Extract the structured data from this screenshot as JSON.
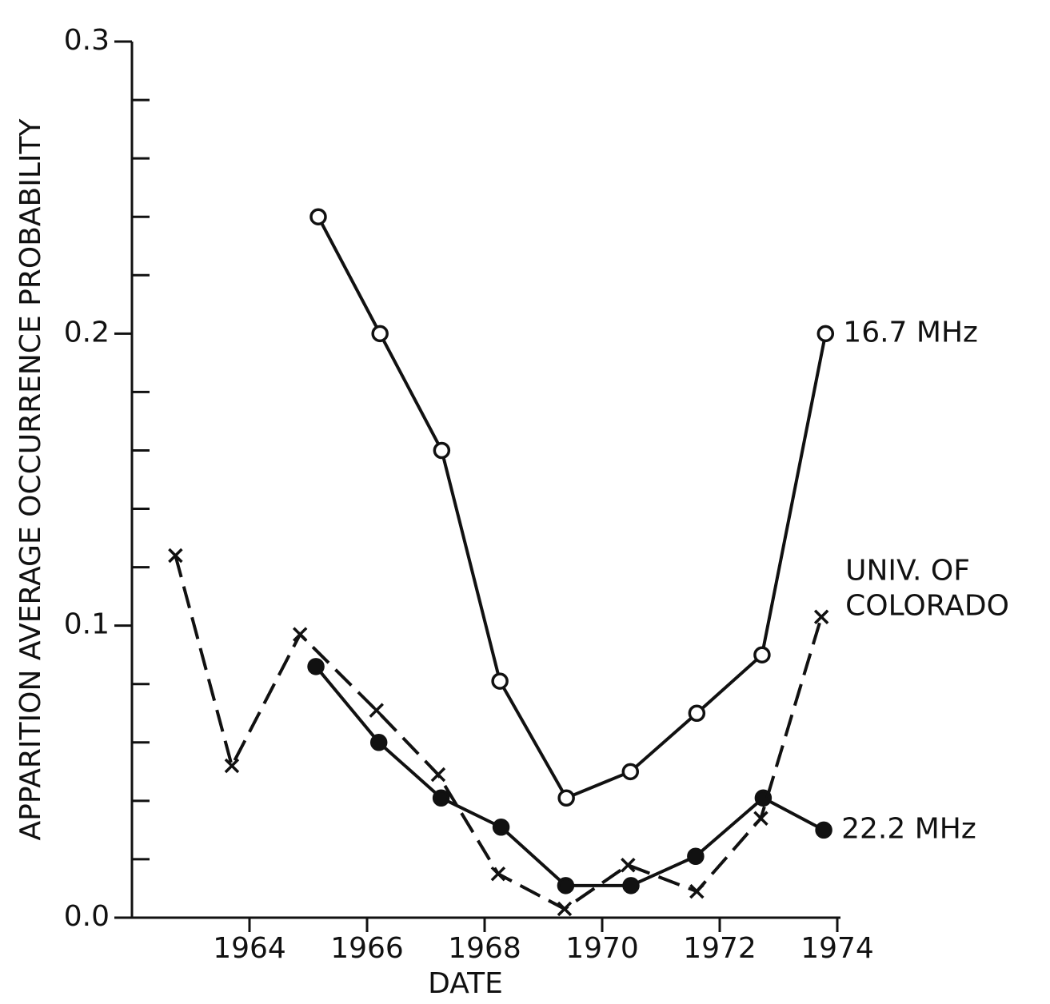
{
  "chart_data": {
    "type": "line",
    "xlabel": "DATE",
    "ylabel": "APPARITION AVERAGE OCCURRENCE PROBABILITY",
    "xlim": [
      1962,
      1974
    ],
    "xticks": [
      1964,
      1966,
      1968,
      1970,
      1972,
      1974
    ],
    "ylim": [
      0,
      0.3
    ],
    "yticks": [
      {
        "value": 0,
        "label": "0.0"
      },
      0.1,
      0.2,
      0.3
    ],
    "yminor_ticks": [
      0.02,
      0.04,
      0.06,
      0.08,
      0.12,
      0.14,
      0.16,
      0.18,
      0.22,
      0.24,
      0.26,
      0.28
    ],
    "series": [
      {
        "name": "16.7 MHz",
        "color": "#111111",
        "marker": "circle-open",
        "dashed": false,
        "x": [
          1965.17,
          1966.22,
          1967.27,
          1968.26,
          1969.39,
          1970.48,
          1971.61,
          1972.72,
          1973.8
        ],
        "values": [
          0.24,
          0.2,
          0.16,
          0.081,
          0.041,
          0.05,
          0.07,
          0.09,
          0.2
        ]
      },
      {
        "name": "22.2 MHz",
        "color": "#111111",
        "marker": "circle-filled",
        "dashed": false,
        "x": [
          1965.13,
          1966.2,
          1967.26,
          1968.28,
          1969.38,
          1970.49,
          1971.59,
          1972.74,
          1973.77
        ],
        "values": [
          0.086,
          0.06,
          0.041,
          0.031,
          0.011,
          0.011,
          0.021,
          0.041,
          0.03
        ]
      },
      {
        "name": "UNIV. OF COLORADO",
        "color": "#111111",
        "marker": "x",
        "dashed": true,
        "x": [
          1962.74,
          1963.7,
          1964.86,
          1966.16,
          1967.21,
          1968.23,
          1969.36,
          1970.44,
          1971.61,
          1972.7,
          1973.73
        ],
        "values": [
          0.124,
          0.052,
          0.097,
          0.071,
          0.049,
          0.015,
          0.003,
          0.018,
          0.009,
          0.034,
          0.103
        ]
      }
    ]
  }
}
